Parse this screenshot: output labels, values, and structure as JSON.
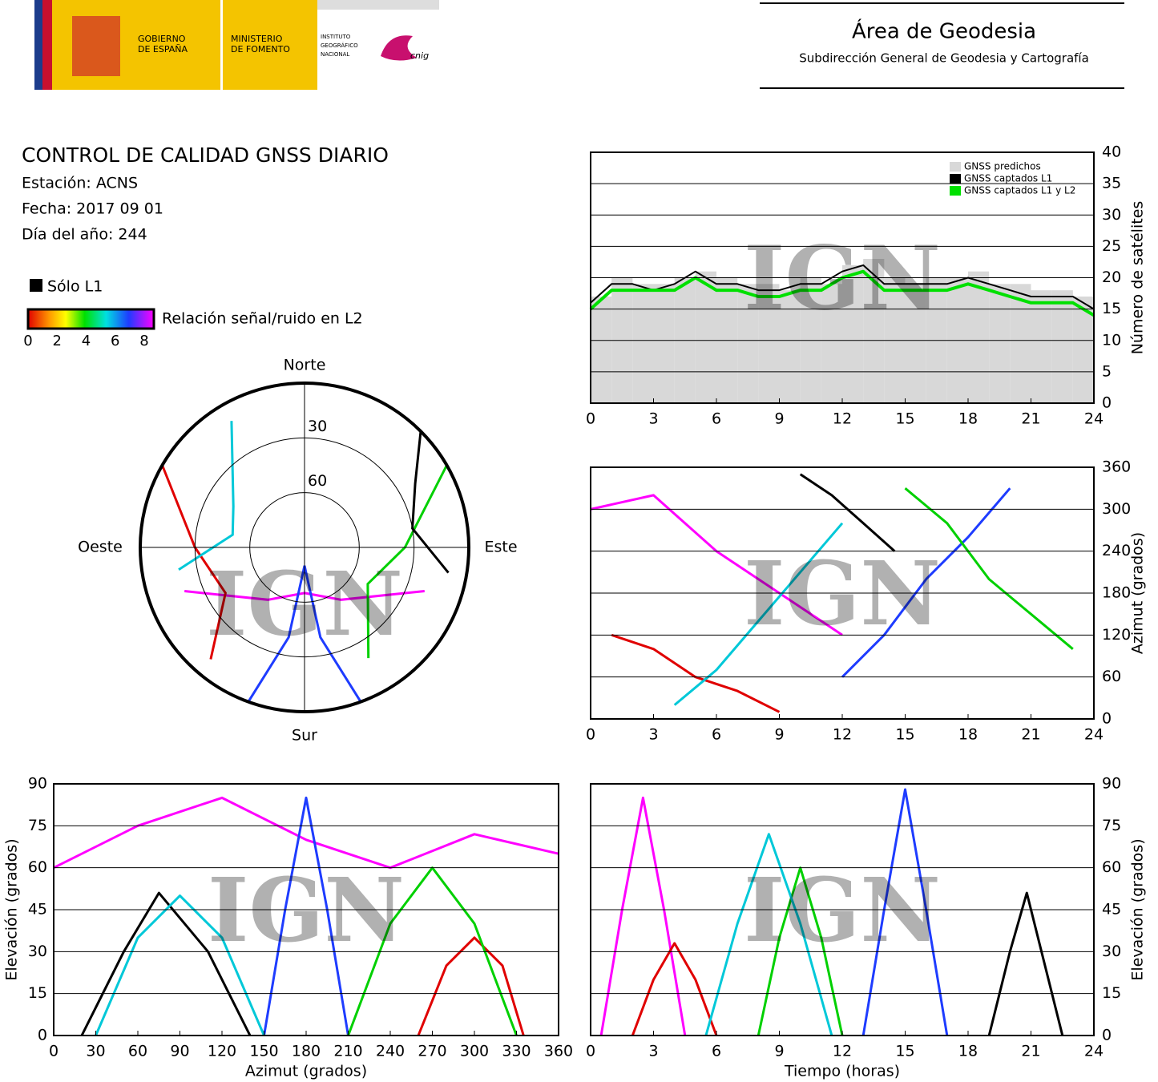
{
  "header": {
    "gov": [
      "GOBIERNO",
      "DE ESPAÑA"
    ],
    "ministry": [
      "MINISTERIO",
      "DE FOMENTO"
    ],
    "institute": [
      "INSTITUTO",
      "GEOGRÁFICO",
      "NACIONAL"
    ],
    "cnig": "cnig",
    "title": "Área de Geodesia",
    "subtitle": "Subdirección General de Geodesia y Cartografía"
  },
  "info": {
    "title": "CONTROL DE CALIDAD GNSS DIARIO",
    "station": "Estación: ACNS",
    "date": "Fecha: 2017 09 01",
    "doy": "Día del año: 244"
  },
  "legend": {
    "l1": "Sólo L1",
    "snr": "Relación señal/ruido en L2",
    "ticks": [
      0,
      2,
      4,
      6,
      8
    ]
  },
  "chart_data": [
    {
      "type": "line",
      "ylabel": "Número de satélites",
      "watermark": "IGN",
      "xlim": [
        0,
        24
      ],
      "xticks": [
        0,
        3,
        6,
        9,
        12,
        15,
        18,
        21,
        24
      ],
      "ylim": [
        0,
        40
      ],
      "yticks": [
        0,
        5,
        10,
        15,
        20,
        25,
        30,
        35,
        40
      ],
      "grid": true,
      "yaxis_side": "right",
      "legend": "top-right",
      "x": [
        0,
        1,
        2,
        3,
        4,
        5,
        6,
        7,
        8,
        9,
        10,
        11,
        12,
        13,
        14,
        15,
        16,
        17,
        18,
        19,
        20,
        21,
        22,
        23,
        24
      ],
      "series": [
        {
          "name": "GNSS predichos",
          "color": "#d8d8d8",
          "area": true,
          "values": [
            17,
            20,
            19,
            19,
            20,
            21,
            20,
            19,
            19,
            18,
            20,
            19,
            22,
            23,
            20,
            19,
            20,
            20,
            21,
            19,
            19,
            18,
            18,
            17,
            16
          ]
        },
        {
          "name": "GNSS captados L1",
          "color": "#000000",
          "values": [
            16,
            19,
            19,
            18,
            19,
            21,
            19,
            19,
            18,
            18,
            19,
            19,
            21,
            22,
            19,
            19,
            19,
            19,
            20,
            19,
            18,
            17,
            17,
            17,
            15
          ]
        },
        {
          "name": "GNSS captados L1 y L2",
          "color": "#00e000",
          "values": [
            15,
            18,
            18,
            18,
            18,
            20,
            18,
            18,
            17,
            17,
            18,
            18,
            20,
            21,
            18,
            18,
            18,
            18,
            19,
            18,
            17,
            16,
            16,
            16,
            14
          ]
        }
      ]
    },
    {
      "type": "scatter",
      "ylabel": "Azimut (grados)",
      "watermark": "IGN",
      "xlim": [
        0,
        24
      ],
      "xticks": [
        0,
        3,
        6,
        9,
        12,
        15,
        18,
        21,
        24
      ],
      "ylim": [
        0,
        360
      ],
      "yticks": [
        0,
        60,
        120,
        180,
        240,
        300,
        360
      ],
      "grid": true,
      "yaxis_side": "right",
      "series": [
        {
          "color": "#ff00ff",
          "x": [
            0,
            3,
            6,
            9,
            12
          ],
          "values": [
            300,
            320,
            240,
            180,
            120
          ]
        },
        {
          "color": "#1e3cff",
          "x": [
            12,
            14,
            16,
            18,
            20
          ],
          "values": [
            60,
            120,
            200,
            260,
            330
          ]
        },
        {
          "color": "#000000",
          "x": [
            10,
            11.5,
            13,
            14.5
          ],
          "values": [
            350,
            320,
            280,
            240
          ]
        },
        {
          "color": "#e00000",
          "x": [
            1,
            3,
            5,
            7,
            9
          ],
          "values": [
            120,
            100,
            60,
            40,
            10
          ]
        },
        {
          "color": "#00d000",
          "x": [
            15,
            17,
            19,
            21,
            23
          ],
          "values": [
            330,
            280,
            200,
            150,
            100
          ]
        },
        {
          "color": "#00c8d8",
          "x": [
            4,
            6,
            8,
            10,
            12
          ],
          "values": [
            20,
            70,
            140,
            210,
            280
          ]
        }
      ]
    },
    {
      "type": "scatter",
      "xlabel": "Azimut (grados)",
      "ylabel": "Elevación (grados)",
      "watermark": "IGN",
      "xlim": [
        0,
        360
      ],
      "xticks": [
        0,
        30,
        60,
        90,
        120,
        150,
        180,
        210,
        240,
        270,
        300,
        330,
        360
      ],
      "ylim": [
        0,
        90
      ],
      "yticks": [
        0,
        15,
        30,
        45,
        60,
        75,
        90
      ],
      "grid": true,
      "yaxis_side": "left",
      "series": [
        {
          "color": "#ff00ff",
          "x": [
            0,
            60,
            120,
            180,
            240,
            300,
            360
          ],
          "values": [
            60,
            75,
            85,
            70,
            60,
            72,
            65
          ]
        },
        {
          "color": "#1e3cff",
          "x": [
            150,
            165,
            180,
            195,
            210
          ],
          "values": [
            0,
            45,
            85,
            45,
            0
          ]
        },
        {
          "color": "#000000",
          "x": [
            20,
            50,
            75,
            110,
            140
          ],
          "values": [
            0,
            30,
            51,
            30,
            0
          ]
        },
        {
          "color": "#e00000",
          "x": [
            260,
            280,
            300,
            320,
            335
          ],
          "values": [
            0,
            25,
            35,
            25,
            0
          ]
        },
        {
          "color": "#00d000",
          "x": [
            210,
            240,
            270,
            300,
            330
          ],
          "values": [
            0,
            40,
            60,
            40,
            0
          ]
        },
        {
          "color": "#00c8d8",
          "x": [
            30,
            60,
            90,
            120,
            150
          ],
          "values": [
            0,
            35,
            50,
            35,
            0
          ]
        }
      ]
    },
    {
      "type": "scatter",
      "xlabel": "Tiempo (horas)",
      "ylabel": "Elevación (grados)",
      "watermark": "IGN",
      "xlim": [
        0,
        24
      ],
      "xticks": [
        0,
        3,
        6,
        9,
        12,
        15,
        18,
        21,
        24
      ],
      "ylim": [
        0,
        90
      ],
      "yticks": [
        0,
        15,
        30,
        45,
        60,
        75,
        90
      ],
      "grid": true,
      "yaxis_side": "right",
      "series": [
        {
          "color": "#ff00ff",
          "x": [
            0.5,
            1.5,
            2.5,
            3.5,
            4.5
          ],
          "values": [
            0,
            45,
            85,
            45,
            0
          ]
        },
        {
          "color": "#1e3cff",
          "x": [
            13,
            14,
            15,
            16,
            17
          ],
          "values": [
            0,
            45,
            88,
            45,
            0
          ]
        },
        {
          "color": "#000000",
          "x": [
            19,
            20,
            20.8,
            21.5,
            22.5
          ],
          "values": [
            0,
            30,
            51,
            30,
            0
          ]
        },
        {
          "color": "#e00000",
          "x": [
            2,
            3,
            4,
            5,
            6
          ],
          "values": [
            0,
            20,
            33,
            20,
            0
          ]
        },
        {
          "color": "#00d000",
          "x": [
            8,
            9,
            10,
            11,
            12
          ],
          "values": [
            0,
            35,
            60,
            35,
            0
          ]
        },
        {
          "color": "#00c8d8",
          "x": [
            5.5,
            7,
            8.5,
            10,
            11.5
          ],
          "values": [
            0,
            40,
            72,
            40,
            0
          ]
        }
      ]
    },
    {
      "type": "polar",
      "watermark": "IGN",
      "directions": [
        "Norte",
        "Este",
        "Sur",
        "Oeste"
      ],
      "rings": [
        30,
        60
      ],
      "series": [
        {
          "color": "#ff00ff",
          "azimuth": [
            250,
            215,
            180,
            145,
            110
          ],
          "values": [
            20,
            55,
            65,
            55,
            20
          ]
        },
        {
          "color": "#1e3cff",
          "azimuth": [
            200,
            190,
            180,
            170,
            160
          ],
          "values": [
            0,
            40,
            80,
            40,
            0
          ]
        },
        {
          "color": "#e00000",
          "azimuth": [
            300,
            270,
            240,
            220
          ],
          "values": [
            0,
            30,
            40,
            10
          ]
        },
        {
          "color": "#00d000",
          "azimuth": [
            60,
            90,
            120,
            150
          ],
          "values": [
            0,
            35,
            50,
            20
          ]
        },
        {
          "color": "#00c8d8",
          "azimuth": [
            330,
            300,
            280,
            260
          ],
          "values": [
            10,
            45,
            50,
            20
          ]
        },
        {
          "color": "#000000",
          "azimuth": [
            45,
            60,
            80,
            100
          ],
          "values": [
            0,
            20,
            30,
            10
          ]
        }
      ]
    }
  ]
}
